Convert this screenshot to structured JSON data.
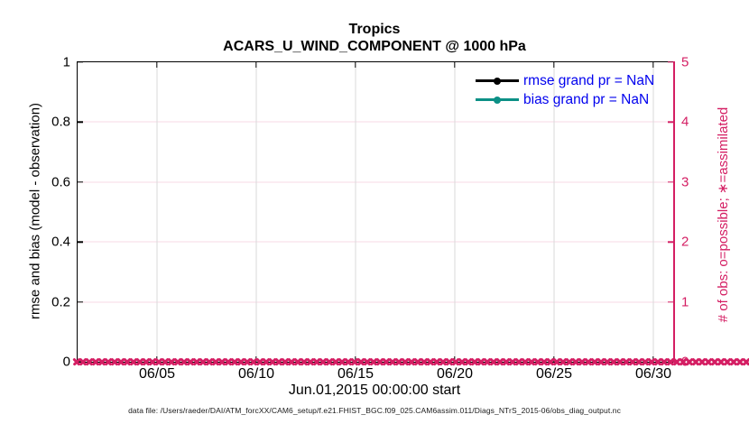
{
  "figure": {
    "title": "Tropics",
    "subtitle": "ACARS_U_WIND_COMPONENT @ 1000 hPa",
    "xlabel": "Jun.01,2015 00:00:00 start",
    "caption": "data file: /Users/raeder/DAI/ATM_forcXX/CAM6_setup/f.e21.FHIST_BGC.f09_025.CAM6assim.011/Diags_NTrS_2015-06/obs_diag_output.nc",
    "left_axis": {
      "label": "rmse and bias (model - observation)",
      "ticks": [
        "0",
        "0.2",
        "0.4",
        "0.6",
        "0.8",
        "1"
      ],
      "min": 0,
      "max": 1,
      "color": "#000000"
    },
    "right_axis": {
      "label": "# of obs: o=possible; ∗=assimilated",
      "ticks": [
        "0",
        "1",
        "2",
        "3",
        "4",
        "5"
      ],
      "min": 0,
      "max": 5,
      "color": "#d41e63"
    },
    "x_axis": {
      "tick_labels": [
        "06/05",
        "06/10",
        "06/15",
        "06/20",
        "06/25",
        "06/30"
      ],
      "tick_days": [
        4,
        9,
        14,
        19,
        24,
        29
      ],
      "range_days": 30
    },
    "legend": [
      {
        "label": "rmse grand pr = NaN",
        "line_color": "#000000",
        "marker": "filled-circle"
      },
      {
        "label": "bias grand pr = NaN",
        "line_color": "#0c9086",
        "marker": "filled-circle"
      }
    ],
    "legend_text_color": "#0000ee",
    "grid": {
      "vertical_color": "#dadada",
      "horizontal_color": "#f7d9e6"
    },
    "obs_markers": {
      "symbol": "asterisk",
      "color": "#d41e63",
      "count": 118,
      "value": 0
    }
  },
  "chart_data": {
    "type": "line",
    "title": "Tropics",
    "subtitle": "ACARS_U_WIND_COMPONENT @ 1000 hPa",
    "xlabel": "Jun.01,2015 00:00:00 start",
    "ylabel": "rmse and bias (model - observation)",
    "ylabel_right": "# of obs: o=possible; ∗=assimilated",
    "x_tick_labels": [
      "06/05",
      "06/10",
      "06/15",
      "06/20",
      "06/25",
      "06/30"
    ],
    "xlim_days": [
      0,
      30
    ],
    "ylim": [
      0,
      1
    ],
    "ylim_right": [
      0,
      5
    ],
    "grid": true,
    "legend_position": "upper right",
    "series": [
      {
        "name": "rmse grand pr = NaN",
        "axis": "left",
        "color": "#000000",
        "values": [],
        "note": "NaN - no curve plotted"
      },
      {
        "name": "bias grand pr = NaN",
        "axis": "left",
        "color": "#0c9086",
        "values": [],
        "note": "NaN - no curve plotted"
      },
      {
        "name": "# of obs (o=possible, ∗=assimilated)",
        "axis": "right",
        "color": "#d41e63",
        "marker": "∗",
        "y_constant": 0,
        "note": "constant 0 across entire June 2015 range"
      }
    ]
  }
}
